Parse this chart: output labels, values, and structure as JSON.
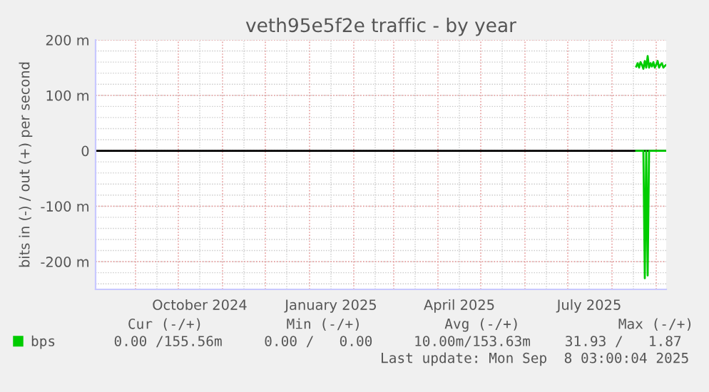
{
  "chart_data": {
    "type": "line",
    "title": "veth95e5f2e traffic - by year",
    "ylabel": "bits in (-) / out (+) per second",
    "xlim": [
      "2024-08-04",
      "2025-09-08"
    ],
    "xticks": [
      {
        "value": "2024-10-16",
        "label": "October 2024"
      },
      {
        "value": "2025-01-16",
        "label": "January 2025"
      },
      {
        "value": "2025-04-16",
        "label": "April 2025"
      },
      {
        "value": "2025-07-16",
        "label": "July 2025"
      }
    ],
    "ylim": [
      -250,
      200
    ],
    "yticks": [
      {
        "value": -200,
        "label": "-200 m"
      },
      {
        "value": -100,
        "label": "-100 m"
      },
      0,
      {
        "value": 100,
        "label": "100 m"
      },
      {
        "value": 200,
        "label": "200 m"
      }
    ],
    "grid": true,
    "legend": "bottom left",
    "marker": "none",
    "line_style": "solid",
    "ref_lines": [
      {
        "axis": "y",
        "value": 0,
        "color": "#000000"
      }
    ],
    "series": [
      {
        "name": "bps",
        "color": "#00cc00",
        "x": [
          "2025-08-18",
          "2025-08-19",
          "2025-08-20",
          "2025-08-21",
          "2025-08-22",
          "2025-08-23",
          "2025-08-24",
          "2025-08-25",
          "2025-08-26",
          "2025-08-27",
          "2025-08-28",
          "2025-08-29",
          "2025-08-30",
          "2025-08-31",
          "2025-09-01",
          "2025-09-02",
          "2025-09-03",
          "2025-09-04",
          "2025-09-05",
          "2025-09-06",
          "2025-09-07",
          "2025-09-08"
        ],
        "values": [
          152,
          158,
          150,
          160,
          155,
          148,
          162,
          150,
          171,
          150,
          158,
          152,
          160,
          150,
          155,
          162,
          150,
          155,
          158,
          150,
          153,
          155
        ]
      },
      {
        "color": "#00cc00",
        "x": [
          "2025-08-18",
          "2025-08-23",
          "2025-08-24",
          "2025-08-25",
          "2025-08-26",
          "2025-08-27",
          "2025-09-08"
        ],
        "values": [
          0,
          0,
          -230,
          0,
          -225,
          0,
          0
        ]
      }
    ],
    "annotations": [
      "Cur (-/+)",
      "Min (-/+)",
      "Avg (-/+)",
      "Max (-/+)",
      "0.00 /155.56m",
      "0.00 /   0.00",
      "10.00m/153.63m",
      "31.93 /   1.87",
      "Last update: Mon Sep  8 03:00:04 2025"
    ]
  }
}
